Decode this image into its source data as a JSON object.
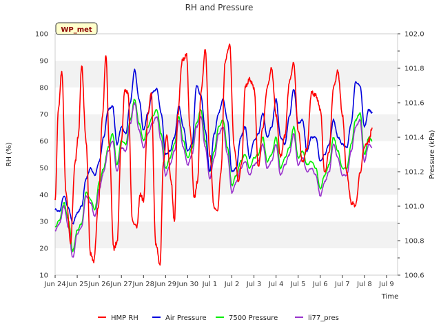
{
  "chart_data": {
    "type": "line",
    "title": "RH and Pressure",
    "badge": "WP_met",
    "xlabel": "Time",
    "ylabel_left": "RH (%)",
    "ylabel_right": "Pressure (kPa)",
    "ylim_left": [
      10,
      100
    ],
    "ylim_right": [
      100.6,
      102.0
    ],
    "xlim": [
      0,
      15.5
    ],
    "x_ticks": [
      "Jun 24",
      "Jun 25",
      "Jun 26",
      "Jun 27",
      "Jun 28",
      "Jun 29",
      "Jun 30",
      "Jul 1",
      "Jul 2",
      "Jul 3",
      "Jul 4",
      "Jul 5",
      "Jul 6",
      "Jul 7",
      "Jul 8",
      "Jul 9"
    ],
    "y_ticks_left": [
      "10",
      "20",
      "30",
      "40",
      "50",
      "60",
      "70",
      "80",
      "90",
      "100"
    ],
    "y_ticks_right": [
      "100.6",
      "100.8",
      "101.0",
      "101.2",
      "101.4",
      "101.6",
      "101.8",
      "102.0"
    ],
    "grid": "alternating horizontal bands",
    "legend_position": "bottom",
    "series": [
      {
        "name": "HMP RH",
        "axis": "left",
        "color": "#ff0000",
        "x": [
          0.0,
          0.15,
          0.3,
          0.5,
          0.7,
          0.9,
          1.05,
          1.2,
          1.4,
          1.6,
          1.75,
          1.95,
          2.15,
          2.3,
          2.45,
          2.65,
          2.8,
          3.0,
          3.15,
          3.3,
          3.5,
          3.7,
          3.85,
          4.0,
          4.2,
          4.35,
          4.55,
          4.75,
          4.9,
          5.05,
          5.25,
          5.4,
          5.55,
          5.75,
          5.95,
          6.1,
          6.3,
          6.45,
          6.6,
          6.8,
          7.0,
          7.2,
          7.35,
          7.5,
          7.7,
          7.9,
          8.1,
          8.3,
          8.45,
          8.6,
          8.8,
          9.0,
          9.2,
          9.4,
          9.6,
          9.8,
          10.0,
          10.2,
          10.4,
          10.6,
          10.8,
          11.0,
          11.2,
          11.4,
          11.6,
          11.8,
          12.0,
          12.2,
          12.4,
          12.6,
          12.8,
          13.0,
          13.2,
          13.4,
          13.6,
          13.8,
          14.0,
          14.2,
          14.35
        ],
        "y": [
          38,
          72,
          86,
          40,
          22,
          52,
          62,
          88,
          60,
          18,
          15,
          35,
          70,
          92,
          58,
          20,
          22,
          60,
          79,
          78,
          30,
          28,
          40,
          38,
          70,
          78,
          22,
          14,
          52,
          62,
          45,
          30,
          70,
          90,
          92,
          65,
          39,
          45,
          78,
          94,
          55,
          35,
          34,
          48,
          90,
          96,
          58,
          45,
          52,
          80,
          83,
          80,
          50,
          65,
          80,
          87,
          70,
          54,
          62,
          82,
          89,
          64,
          52,
          57,
          78,
          77,
          72,
          48,
          56,
          80,
          86,
          70,
          48,
          37,
          36,
          48,
          58,
          60,
          65
        ]
      },
      {
        "name": "Air Pressure",
        "axis": "right",
        "color": "#0000dd",
        "x": [
          0.0,
          0.2,
          0.4,
          0.6,
          0.8,
          1.0,
          1.2,
          1.4,
          1.6,
          1.8,
          2.0,
          2.2,
          2.4,
          2.6,
          2.8,
          3.0,
          3.2,
          3.4,
          3.6,
          3.8,
          4.0,
          4.2,
          4.4,
          4.6,
          4.8,
          5.0,
          5.2,
          5.4,
          5.6,
          5.8,
          6.0,
          6.2,
          6.4,
          6.6,
          6.8,
          7.0,
          7.2,
          7.4,
          7.6,
          7.8,
          8.0,
          8.2,
          8.4,
          8.6,
          8.8,
          9.0,
          9.2,
          9.4,
          9.6,
          9.8,
          10.0,
          10.2,
          10.4,
          10.6,
          10.8,
          11.0,
          11.2,
          11.4,
          11.6,
          11.8,
          12.0,
          12.2,
          12.4,
          12.6,
          12.8,
          13.0,
          13.2,
          13.4,
          13.6,
          13.8,
          14.0,
          14.2,
          14.35
        ],
        "y": [
          100.98,
          100.97,
          101.06,
          100.99,
          100.9,
          100.96,
          101.0,
          101.16,
          101.22,
          101.18,
          101.26,
          101.4,
          101.56,
          101.58,
          101.36,
          101.46,
          101.42,
          101.6,
          101.79,
          101.62,
          101.44,
          101.54,
          101.66,
          101.68,
          101.54,
          101.3,
          101.32,
          101.4,
          101.58,
          101.46,
          101.32,
          101.36,
          101.7,
          101.64,
          101.44,
          101.2,
          101.42,
          101.54,
          101.62,
          101.5,
          101.2,
          101.22,
          101.4,
          101.46,
          101.28,
          101.38,
          101.42,
          101.54,
          101.4,
          101.46,
          101.62,
          101.4,
          101.36,
          101.52,
          101.68,
          101.48,
          101.5,
          101.32,
          101.4,
          101.4,
          101.26,
          101.3,
          101.36,
          101.5,
          101.4,
          101.36,
          101.34,
          101.48,
          101.72,
          101.7,
          101.46,
          101.56,
          101.54
        ]
      },
      {
        "name": "7500 Pressure",
        "axis": "right",
        "color": "#00ee00",
        "x": [
          0.0,
          0.2,
          0.4,
          0.6,
          0.8,
          1.0,
          1.2,
          1.4,
          1.6,
          1.8,
          2.0,
          2.2,
          2.4,
          2.6,
          2.8,
          3.0,
          3.2,
          3.4,
          3.6,
          3.8,
          4.0,
          4.2,
          4.4,
          4.6,
          4.8,
          5.0,
          5.2,
          5.4,
          5.6,
          5.8,
          6.0,
          6.2,
          6.4,
          6.6,
          6.8,
          7.0,
          7.2,
          7.4,
          7.6,
          7.8,
          8.0,
          8.2,
          8.4,
          8.6,
          8.8,
          9.0,
          9.2,
          9.4,
          9.6,
          9.8,
          10.0,
          10.2,
          10.4,
          10.6,
          10.8,
          11.0,
          11.2,
          11.4,
          11.6,
          11.8,
          12.0,
          12.2,
          12.4,
          12.6,
          12.8,
          13.0,
          13.2,
          13.4,
          13.6,
          13.8,
          14.0,
          14.2,
          14.35
        ],
        "y": [
          100.88,
          100.92,
          101.02,
          100.92,
          100.74,
          100.86,
          100.9,
          101.08,
          101.04,
          100.98,
          101.14,
          101.22,
          101.34,
          101.42,
          101.24,
          101.38,
          101.36,
          101.5,
          101.62,
          101.48,
          101.38,
          101.46,
          101.52,
          101.56,
          101.42,
          101.22,
          101.28,
          101.36,
          101.52,
          101.38,
          101.28,
          101.34,
          101.48,
          101.56,
          101.38,
          101.2,
          101.32,
          101.46,
          101.5,
          101.34,
          101.12,
          101.18,
          101.26,
          101.3,
          101.22,
          101.28,
          101.3,
          101.4,
          101.26,
          101.3,
          101.4,
          101.22,
          101.28,
          101.34,
          101.46,
          101.28,
          101.32,
          101.24,
          101.26,
          101.22,
          101.1,
          101.18,
          101.24,
          101.4,
          101.32,
          101.22,
          101.22,
          101.36,
          101.5,
          101.54,
          101.3,
          101.4,
          101.38
        ]
      },
      {
        "name": "li77_pres",
        "axis": "right",
        "color": "#9933cc",
        "x": [
          0.0,
          0.2,
          0.4,
          0.6,
          0.8,
          1.0,
          1.2,
          1.4,
          1.6,
          1.8,
          2.0,
          2.2,
          2.4,
          2.6,
          2.8,
          3.0,
          3.2,
          3.4,
          3.6,
          3.8,
          4.0,
          4.2,
          4.4,
          4.6,
          4.8,
          5.0,
          5.2,
          5.4,
          5.6,
          5.8,
          6.0,
          6.2,
          6.4,
          6.6,
          6.8,
          7.0,
          7.2,
          7.4,
          7.6,
          7.8,
          8.0,
          8.2,
          8.4,
          8.6,
          8.8,
          9.0,
          9.2,
          9.4,
          9.6,
          9.8,
          10.0,
          10.2,
          10.4,
          10.6,
          10.8,
          11.0,
          11.2,
          11.4,
          11.6,
          11.8,
          12.0,
          12.2,
          12.4,
          12.6,
          12.8,
          13.0,
          13.2,
          13.4,
          13.6,
          13.8,
          14.0,
          14.2,
          14.35
        ],
        "y": [
          100.86,
          100.9,
          101.0,
          100.88,
          100.7,
          100.84,
          100.88,
          101.06,
          101.02,
          100.94,
          101.1,
          101.2,
          101.32,
          101.38,
          101.2,
          101.34,
          101.32,
          101.48,
          101.6,
          101.44,
          101.34,
          101.42,
          101.48,
          101.52,
          101.38,
          101.18,
          101.24,
          101.32,
          101.5,
          101.34,
          101.24,
          101.3,
          101.46,
          101.52,
          101.34,
          101.16,
          101.28,
          101.42,
          101.46,
          101.3,
          101.08,
          101.14,
          101.22,
          101.26,
          101.18,
          101.24,
          101.26,
          101.36,
          101.22,
          101.26,
          101.36,
          101.18,
          101.24,
          101.3,
          101.42,
          101.24,
          101.28,
          101.2,
          101.22,
          101.18,
          101.06,
          101.14,
          101.2,
          101.36,
          101.28,
          101.18,
          101.18,
          101.32,
          101.46,
          101.5,
          101.26,
          101.36,
          101.34
        ]
      }
    ]
  }
}
